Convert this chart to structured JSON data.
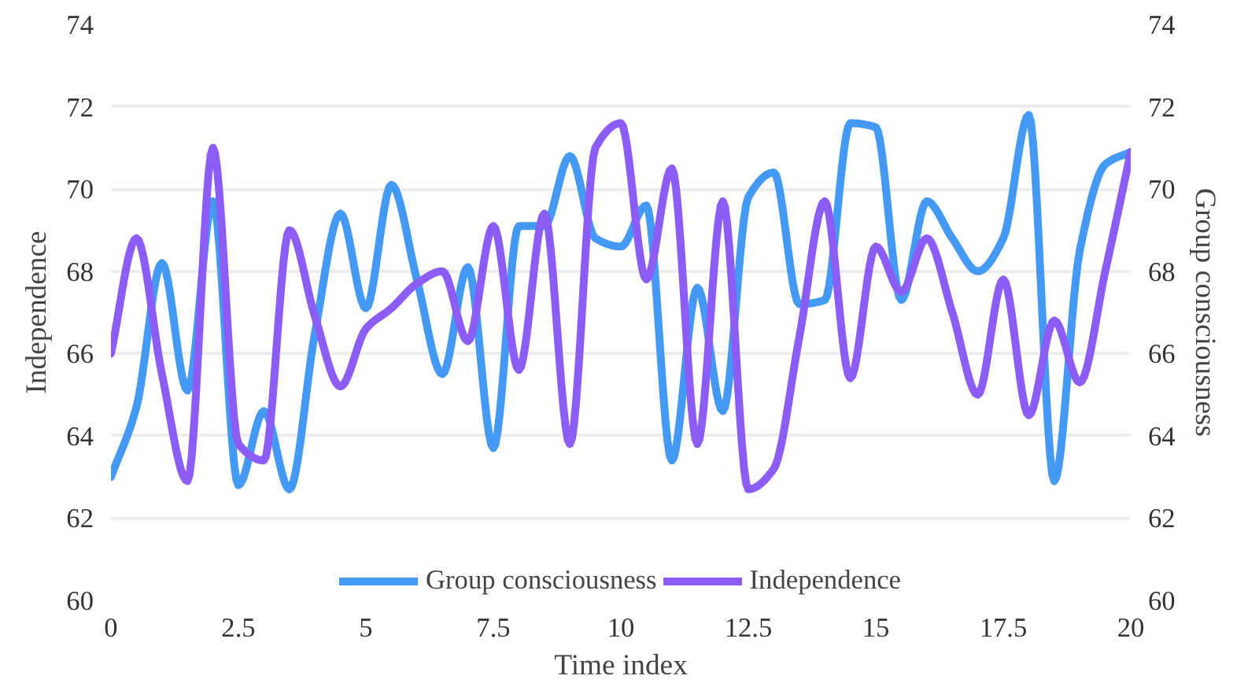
{
  "chart_data": {
    "type": "line",
    "xlabel": "Time index",
    "ylabel": "Independence",
    "y2label": "Group consciousness",
    "x": [
      0,
      0.5,
      1,
      1.5,
      2,
      2.5,
      3,
      3.5,
      4,
      4.5,
      5,
      5.5,
      6,
      6.5,
      7,
      7.5,
      8,
      8.5,
      9,
      9.5,
      10,
      10.5,
      11,
      11.5,
      12,
      12.5,
      13,
      13.5,
      14,
      14.5,
      15,
      15.5,
      16,
      16.5,
      17,
      17.5,
      18,
      18.5,
      19,
      19.5,
      20
    ],
    "series": [
      {
        "name": "Group consciousness",
        "color": "#4499f5",
        "values": [
          63.0,
          64.7,
          68.2,
          65.1,
          69.7,
          62.8,
          64.6,
          62.7,
          66.5,
          69.4,
          67.1,
          70.1,
          67.8,
          65.5,
          68.1,
          63.7,
          69.1,
          69.1,
          70.8,
          68.8,
          68.6,
          69.6,
          63.4,
          67.6,
          64.6,
          69.8,
          70.4,
          67.2,
          67.3,
          71.6,
          71.5,
          67.3,
          69.7,
          68.8,
          68.0,
          68.8,
          71.8,
          62.9,
          68.5,
          70.6,
          70.9
        ]
      },
      {
        "name": "Independence",
        "color": "#8b5cf6",
        "values": [
          66.0,
          68.8,
          65.5,
          62.9,
          71.0,
          63.8,
          63.4,
          69.0,
          66.9,
          65.2,
          66.6,
          67.1,
          67.7,
          68.0,
          66.3,
          69.1,
          65.6,
          69.4,
          63.8,
          71.0,
          71.6,
          67.8,
          70.5,
          63.8,
          69.7,
          62.7,
          63.2,
          66.4,
          69.7,
          65.4,
          68.6,
          67.5,
          68.8,
          67.0,
          65.0,
          67.8,
          64.5,
          66.8,
          65.3,
          68.0,
          70.9
        ]
      }
    ],
    "xlim": [
      0,
      20
    ],
    "xticks": [
      0,
      2.5,
      5,
      7.5,
      10,
      12.5,
      15,
      17.5,
      20
    ],
    "ylim": [
      60,
      74
    ],
    "yticks": [
      60,
      62,
      64,
      66,
      68,
      70,
      72,
      74
    ],
    "y2lim": [
      60,
      74
    ],
    "y2ticks": [
      60,
      62,
      64,
      66,
      68,
      70,
      72,
      74
    ],
    "grid": "y",
    "legend": "bottom",
    "line_style": "solid",
    "marker": "none"
  }
}
